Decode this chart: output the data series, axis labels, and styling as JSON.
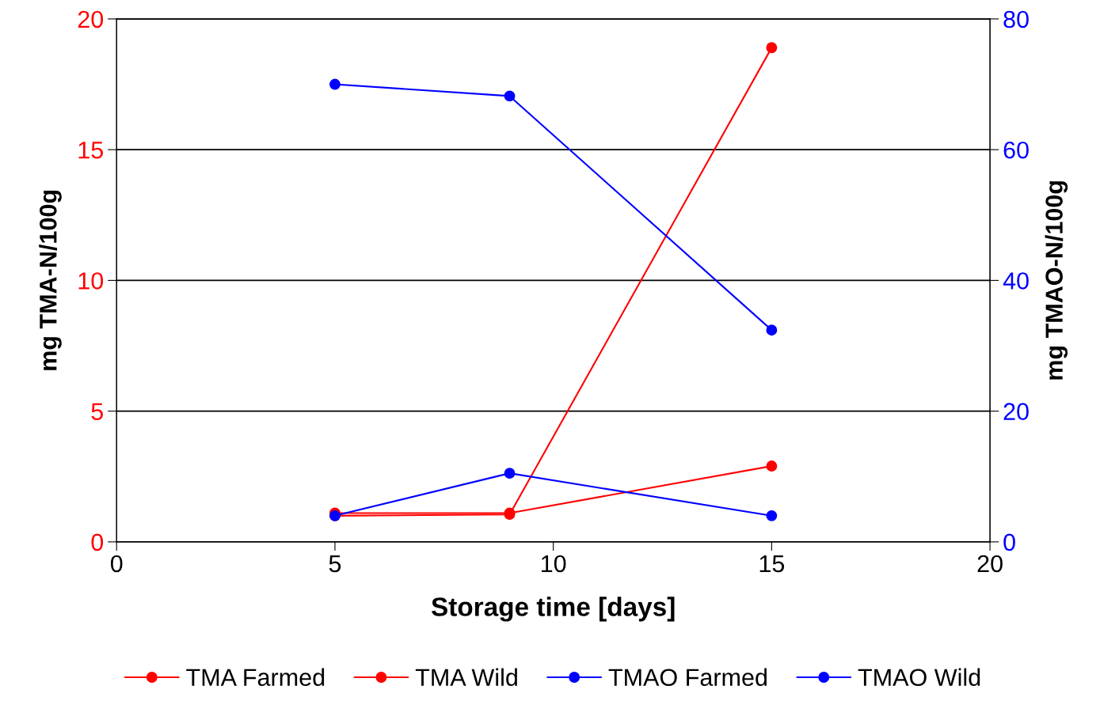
{
  "chart_data": {
    "type": "line",
    "xlabel": "Storage time [days]",
    "ylabel": "mg TMA-N/100g",
    "y2label": "mg TMAO-N/100g",
    "xlim": [
      0,
      20
    ],
    "xticks": [
      0,
      5,
      10,
      15,
      20
    ],
    "ylim": [
      0,
      20
    ],
    "yticks": [
      0,
      5,
      10,
      15,
      20
    ],
    "y2lim": [
      0,
      80
    ],
    "y2ticks": [
      0,
      20,
      40,
      60,
      80
    ],
    "grid": "y",
    "legend": "bottom",
    "marker": "circle",
    "line_style": "solid",
    "series": [
      {
        "name": "TMA Farmed",
        "color": "#ff0000",
        "x": [
          5,
          9,
          15
        ],
        "values": [
          1.1,
          1.1,
          2.9
        ]
      },
      {
        "name": "TMA Wild",
        "color": "#ff0000",
        "x": [
          5,
          9,
          15
        ],
        "values": [
          1.0,
          1.05,
          18.9
        ]
      },
      {
        "name": "TMAO Farmed",
        "color": "#0000ff",
        "x": [
          5,
          9,
          15
        ],
        "values": [
          4.0,
          10.5,
          4.0
        ],
        "axis": "y2"
      },
      {
        "name": "TMAO Wild",
        "color": "#0000ff",
        "x": [
          5,
          9,
          15
        ],
        "values": [
          70.0,
          68.2,
          32.4
        ],
        "axis": "y2"
      }
    ]
  }
}
